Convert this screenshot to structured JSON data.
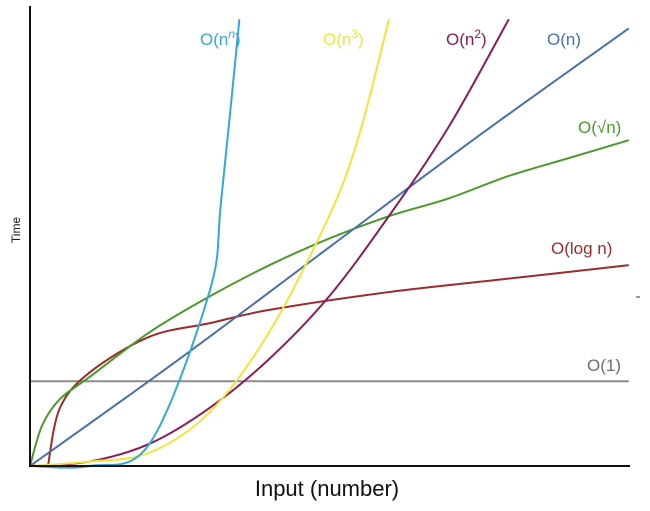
{
  "chart_data": {
    "type": "line",
    "title": "",
    "xlabel": "Input (number)",
    "ylabel": "Time",
    "ticks": "none",
    "grid": false,
    "legend": "inline labels at curve ends",
    "series": [
      {
        "name": "O(1)",
        "color": "#8c8c8c",
        "points": [
          [
            0.0,
            0.19
          ],
          [
            1.0,
            0.19
          ]
        ]
      },
      {
        "name": "O(log n)",
        "color": "#9c2b2b",
        "points": [
          [
            0.03,
            0.0
          ],
          [
            0.05,
            0.13
          ],
          [
            0.1,
            0.21
          ],
          [
            0.2,
            0.29
          ],
          [
            0.3,
            0.32
          ],
          [
            0.4,
            0.35
          ],
          [
            0.6,
            0.39
          ],
          [
            0.8,
            0.42
          ],
          [
            1.0,
            0.45
          ]
        ]
      },
      {
        "name": "O(√n)",
        "color": "#4a9a2a",
        "points": [
          [
            0.0,
            0.0
          ],
          [
            0.02,
            0.09
          ],
          [
            0.05,
            0.15
          ],
          [
            0.1,
            0.2
          ],
          [
            0.2,
            0.3
          ],
          [
            0.3,
            0.38
          ],
          [
            0.4,
            0.45
          ],
          [
            0.5,
            0.51
          ],
          [
            0.6,
            0.56
          ],
          [
            0.7,
            0.6
          ],
          [
            0.8,
            0.65
          ],
          [
            0.9,
            0.69
          ],
          [
            1.0,
            0.73
          ]
        ]
      },
      {
        "name": "O(n)",
        "color": "#4a6fb0",
        "points": [
          [
            0.0,
            0.0
          ],
          [
            0.25,
            0.24
          ],
          [
            0.5,
            0.49
          ],
          [
            0.75,
            0.74
          ],
          [
            1.0,
            0.98
          ]
        ]
      },
      {
        "name": "O(n2)",
        "color": "#8a1c5a",
        "points": [
          [
            0.0,
            0.0
          ],
          [
            0.1,
            0.01
          ],
          [
            0.2,
            0.05
          ],
          [
            0.3,
            0.13
          ],
          [
            0.4,
            0.24
          ],
          [
            0.5,
            0.38
          ],
          [
            0.6,
            0.56
          ],
          [
            0.7,
            0.76
          ],
          [
            0.8,
            1.0
          ]
        ]
      },
      {
        "name": "O(n3)",
        "color": "#f2e43a",
        "points": [
          [
            0.0,
            0.0
          ],
          [
            0.1,
            0.01
          ],
          [
            0.2,
            0.03
          ],
          [
            0.3,
            0.12
          ],
          [
            0.4,
            0.3
          ],
          [
            0.5,
            0.56
          ],
          [
            0.55,
            0.74
          ],
          [
            0.6,
            1.0
          ]
        ]
      },
      {
        "name": "O(nn)",
        "color": "#34a9d6",
        "points": [
          [
            0.0,
            0.0
          ],
          [
            0.1,
            0.0
          ],
          [
            0.2,
            0.05
          ],
          [
            0.3,
            0.39
          ],
          [
            0.32,
            0.6
          ],
          [
            0.35,
            1.0
          ]
        ]
      }
    ]
  },
  "labels": {
    "o1": "O(1)",
    "log": "O(log n)",
    "sqrt": "O(√n)",
    "n": "O(n)",
    "n2_base": "O(n",
    "n2_exp": "2",
    "n3_base": "O(n",
    "n3_exp": "3",
    "nn_base": "O(n",
    "nn_exp": "n",
    "close": ")"
  }
}
